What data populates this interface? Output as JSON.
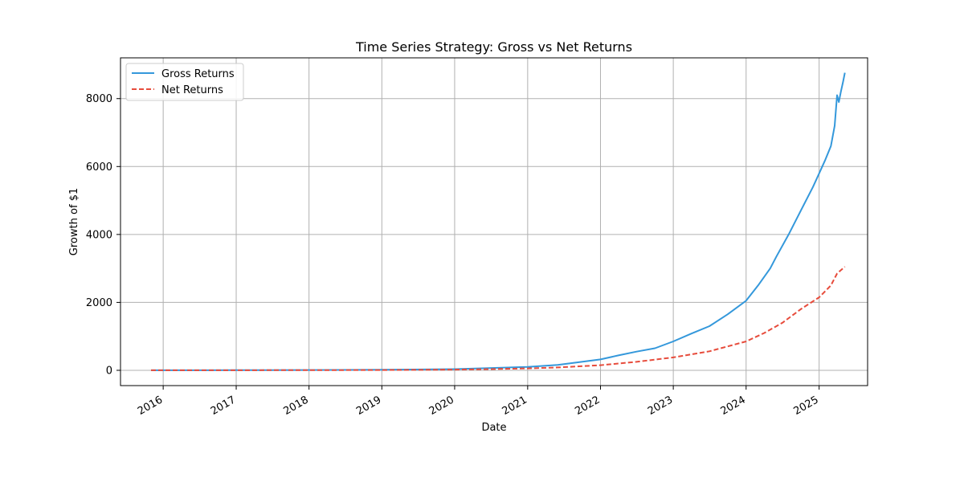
{
  "chart_data": {
    "type": "line",
    "title": "Time Series Strategy: Gross vs Net Returns",
    "xlabel": "Date",
    "ylabel": "Growth of $1",
    "x_ticks": [
      "2016",
      "2017",
      "2018",
      "2019",
      "2020",
      "2021",
      "2022",
      "2023",
      "2024",
      "2025"
    ],
    "y_ticks": [
      "0",
      "2000",
      "4000",
      "6000",
      "8000"
    ],
    "xlim": [
      "2015-06-01",
      "2025-09-01"
    ],
    "ylim": [
      -450,
      9200
    ],
    "grid": true,
    "legend_position": "top-left",
    "series": [
      {
        "name": "Gross Returns",
        "color": "#3498db",
        "style": "solid",
        "points": [
          [
            "2015-11-01",
            1
          ],
          [
            "2016-06-01",
            2
          ],
          [
            "2017-01-01",
            3
          ],
          [
            "2017-06-01",
            5
          ],
          [
            "2018-01-01",
            8
          ],
          [
            "2018-06-01",
            12
          ],
          [
            "2019-01-01",
            17
          ],
          [
            "2019-06-01",
            24
          ],
          [
            "2020-01-01",
            35
          ],
          [
            "2020-06-01",
            60
          ],
          [
            "2021-01-01",
            100
          ],
          [
            "2021-06-01",
            160
          ],
          [
            "2022-01-01",
            320
          ],
          [
            "2022-04-01",
            440
          ],
          [
            "2022-07-01",
            550
          ],
          [
            "2022-10-01",
            650
          ],
          [
            "2023-01-01",
            850
          ],
          [
            "2023-04-01",
            1080
          ],
          [
            "2023-07-01",
            1300
          ],
          [
            "2023-10-01",
            1650
          ],
          [
            "2024-01-01",
            2050
          ],
          [
            "2024-03-01",
            2500
          ],
          [
            "2024-05-01",
            3000
          ],
          [
            "2024-06-01",
            3350
          ],
          [
            "2024-08-01",
            4000
          ],
          [
            "2024-10-01",
            4700
          ],
          [
            "2024-12-01",
            5400
          ],
          [
            "2025-01-01",
            5800
          ],
          [
            "2025-02-01",
            6200
          ],
          [
            "2025-03-01",
            6600
          ],
          [
            "2025-03-20",
            7200
          ],
          [
            "2025-04-01",
            8100
          ],
          [
            "2025-04-10",
            7900
          ],
          [
            "2025-04-20",
            8200
          ],
          [
            "2025-05-01",
            8500
          ],
          [
            "2025-05-10",
            8760
          ]
        ]
      },
      {
        "name": "Net Returns",
        "color": "#e74c3c",
        "style": "dashed",
        "points": [
          [
            "2015-11-01",
            1
          ],
          [
            "2016-06-01",
            1.5
          ],
          [
            "2017-01-01",
            2
          ],
          [
            "2017-06-01",
            3
          ],
          [
            "2018-01-01",
            5
          ],
          [
            "2018-06-01",
            7
          ],
          [
            "2019-01-01",
            10
          ],
          [
            "2019-06-01",
            14
          ],
          [
            "2020-01-01",
            20
          ],
          [
            "2020-06-01",
            32
          ],
          [
            "2021-01-01",
            55
          ],
          [
            "2021-06-01",
            85
          ],
          [
            "2022-01-01",
            150
          ],
          [
            "2022-07-01",
            250
          ],
          [
            "2023-01-01",
            380
          ],
          [
            "2023-07-01",
            560
          ],
          [
            "2024-01-01",
            850
          ],
          [
            "2024-04-01",
            1100
          ],
          [
            "2024-07-01",
            1400
          ],
          [
            "2024-10-01",
            1800
          ],
          [
            "2025-01-01",
            2150
          ],
          [
            "2025-03-01",
            2500
          ],
          [
            "2025-04-01",
            2850
          ],
          [
            "2025-05-10",
            3050
          ]
        ]
      }
    ]
  }
}
